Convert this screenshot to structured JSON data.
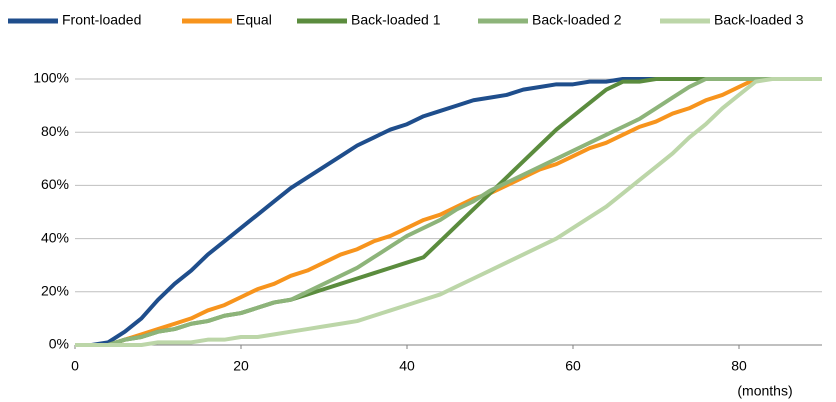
{
  "chart_data": {
    "type": "line",
    "x_label": "(months)",
    "x": [
      0,
      2,
      4,
      6,
      8,
      10,
      12,
      14,
      16,
      18,
      20,
      22,
      24,
      26,
      28,
      30,
      32,
      34,
      36,
      38,
      40,
      42,
      44,
      46,
      48,
      50,
      52,
      54,
      56,
      58,
      60,
      62,
      64,
      66,
      68,
      70,
      72,
      74,
      76,
      78,
      80,
      82,
      84,
      86,
      88,
      90
    ],
    "series": [
      {
        "name": "Front-loaded",
        "color": "#1f4e8c",
        "values": [
          0,
          0,
          1,
          5,
          10,
          17,
          23,
          28,
          34,
          39,
          44,
          49,
          54,
          59,
          63,
          67,
          71,
          75,
          78,
          81,
          83,
          86,
          88,
          90,
          92,
          93,
          94,
          96,
          97,
          98,
          98,
          99,
          99,
          100,
          100,
          100,
          100,
          100,
          100,
          100,
          100,
          100,
          100,
          100,
          100,
          100
        ]
      },
      {
        "name": "Equal",
        "color": "#f7941d",
        "values": [
          0,
          0,
          0,
          2,
          4,
          6,
          8,
          10,
          13,
          15,
          18,
          21,
          23,
          26,
          28,
          31,
          34,
          36,
          39,
          41,
          44,
          47,
          49,
          52,
          55,
          57,
          60,
          63,
          66,
          68,
          71,
          74,
          76,
          79,
          82,
          84,
          87,
          89,
          92,
          94,
          97,
          100,
          100,
          100,
          100,
          100
        ]
      },
      {
        "name": "Back-loaded 1",
        "color": "#5b8c3e",
        "values": [
          0,
          0,
          0,
          2,
          3,
          5,
          6,
          8,
          9,
          11,
          12,
          14,
          16,
          17,
          19,
          21,
          23,
          25,
          27,
          29,
          31,
          33,
          39,
          45,
          51,
          57,
          63,
          69,
          75,
          81,
          86,
          91,
          96,
          99,
          99,
          100,
          100,
          100,
          100,
          100,
          100,
          100,
          100,
          100,
          100,
          100
        ]
      },
      {
        "name": "Back-loaded 2",
        "color": "#8db47a",
        "values": [
          0,
          0,
          0,
          2,
          3,
          5,
          6,
          8,
          9,
          11,
          12,
          14,
          16,
          17,
          20,
          23,
          26,
          29,
          33,
          37,
          41,
          44,
          47,
          51,
          54,
          58,
          61,
          64,
          67,
          70,
          73,
          76,
          79,
          82,
          85,
          89,
          93,
          97,
          100,
          100,
          100,
          100,
          100,
          100,
          100,
          100
        ]
      },
      {
        "name": "Back-loaded 3",
        "color": "#bcd6a8",
        "values": [
          0,
          0,
          0,
          0,
          0,
          1,
          1,
          1,
          2,
          2,
          3,
          3,
          4,
          5,
          6,
          7,
          8,
          9,
          11,
          13,
          15,
          17,
          19,
          22,
          25,
          28,
          31,
          34,
          37,
          40,
          44,
          48,
          52,
          57,
          62,
          67,
          72,
          78,
          83,
          89,
          94,
          99,
          100,
          100,
          100,
          100
        ]
      }
    ],
    "xlim": [
      0,
      90
    ],
    "xticks": [
      0,
      20,
      40,
      60,
      80
    ],
    "ylim": [
      0,
      100
    ],
    "yticks": [
      {
        "value": 0,
        "label": "0%"
      },
      {
        "value": 20,
        "label": "20%"
      },
      {
        "value": 40,
        "label": "40%"
      },
      {
        "value": 60,
        "label": "60%"
      },
      {
        "value": 80,
        "label": "80%"
      },
      {
        "value": 100,
        "label": "100%"
      }
    ],
    "grid": true,
    "legend": "top"
  }
}
